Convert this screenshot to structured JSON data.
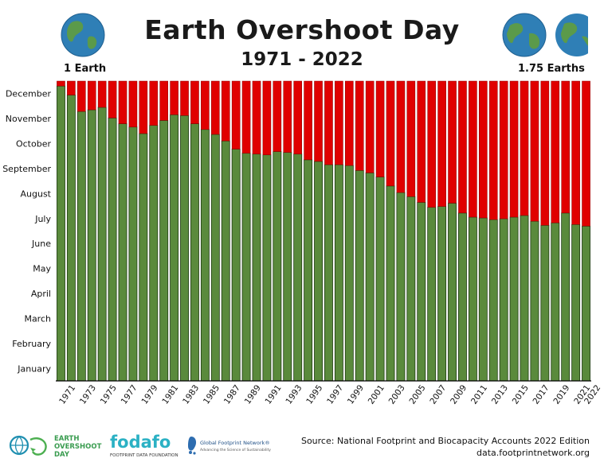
{
  "header": {
    "title": "Earth Overshoot Day",
    "subtitle": "1971 - 2022",
    "left_label": "1 Earth",
    "right_label": "1.75 Earths"
  },
  "footer": {
    "logo1_line1": "EARTH",
    "logo1_line2": "OVERSHOOT",
    "logo1_line3": "DAY",
    "logo2_name": "fodafo",
    "logo2_sub": "FOOTPRINT DATA FOUNDATION",
    "logo3_name": "Global Footprint Network®",
    "logo3_sub": "Advancing the Science of Sustainability",
    "source_line1": "Source: National Footprint and Biocapacity Accounts 2022 Edition",
    "source_line2": "data.footprintnetwork.org"
  },
  "colors": {
    "green": "#5a8a3c",
    "red": "#e00000",
    "bar_border": "#1e3a12"
  },
  "chart_data": {
    "type": "bar",
    "stacked": true,
    "title": "Earth Overshoot Day",
    "subtitle": "1971 - 2022",
    "x": [
      1971,
      1972,
      1973,
      1974,
      1975,
      1976,
      1977,
      1978,
      1979,
      1980,
      1981,
      1982,
      1983,
      1984,
      1985,
      1986,
      1987,
      1988,
      1989,
      1990,
      1991,
      1992,
      1993,
      1994,
      1995,
      1996,
      1997,
      1998,
      1999,
      2000,
      2001,
      2002,
      2003,
      2004,
      2005,
      2006,
      2007,
      2008,
      2009,
      2010,
      2011,
      2012,
      2013,
      2014,
      2015,
      2016,
      2017,
      2018,
      2019,
      2020,
      2021,
      2022
    ],
    "x_tick_labels": [
      "1971",
      "1973",
      "1975",
      "1977",
      "1979",
      "1981",
      "1983",
      "1985",
      "1987",
      "1989",
      "1991",
      "1993",
      "1995",
      "1997",
      "1999",
      "2001",
      "2003",
      "2005",
      "2007",
      "2009",
      "2011",
      "2013",
      "2015",
      "2017",
      "2019",
      "2021",
      "2022"
    ],
    "y_tick_labels": [
      "January",
      "February",
      "March",
      "April",
      "May",
      "June",
      "July",
      "August",
      "September",
      "October",
      "November",
      "December"
    ],
    "ylim": [
      1,
      366
    ],
    "series": [
      {
        "color": "#5a8a3c",
        "values": [
          360,
          349,
          329,
          331,
          334,
          321,
          314,
          310,
          302,
          312,
          318,
          325,
          324,
          314,
          307,
          301,
          293,
          283,
          278,
          277,
          276,
          280,
          279,
          277,
          270,
          268,
          264,
          264,
          263,
          257,
          254,
          249,
          238,
          230,
          225,
          218,
          212,
          213,
          217,
          205,
          200,
          199,
          197,
          198,
          200,
          202,
          195,
          190,
          193,
          205,
          191,
          189
        ]
      },
      {
        "color": "#e00000",
        "values": [
          6,
          17,
          37,
          35,
          32,
          45,
          52,
          56,
          64,
          54,
          48,
          41,
          42,
          52,
          59,
          65,
          73,
          83,
          88,
          89,
          90,
          86,
          87,
          89,
          96,
          98,
          102,
          102,
          103,
          109,
          112,
          117,
          128,
          136,
          141,
          148,
          154,
          153,
          149,
          161,
          166,
          167,
          169,
          168,
          166,
          164,
          171,
          176,
          173,
          161,
          175,
          177
        ]
      }
    ]
  }
}
